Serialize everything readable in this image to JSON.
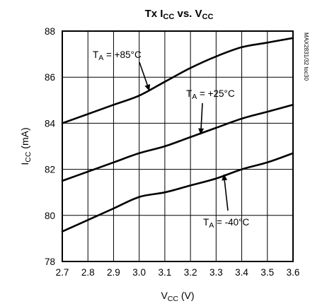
{
  "chart_data": {
    "type": "line",
    "title": {
      "base": "Tx I",
      "sub1": "CC",
      "mid": " vs. V",
      "sub2": "CC"
    },
    "xlabel": {
      "base": "V",
      "sub": "CC",
      "rest": " (V)"
    },
    "ylabel": {
      "base": "I",
      "sub": "CC",
      "rest": " (mA)"
    },
    "xlim": [
      2.7,
      3.6
    ],
    "ylim": [
      78,
      88
    ],
    "xticks": [
      "2.7",
      "2.8",
      "2.9",
      "3.0",
      "3.1",
      "3.2",
      "3.3",
      "3.4",
      "3.5",
      "3.6"
    ],
    "yticks": [
      "78",
      "80",
      "82",
      "84",
      "86",
      "88"
    ],
    "grid": true,
    "series": [
      {
        "name": {
          "base": "T",
          "sub": "A",
          "rest": " = +85°C"
        },
        "x": [
          2.7,
          2.8,
          2.9,
          3.0,
          3.1,
          3.2,
          3.3,
          3.4,
          3.5,
          3.6
        ],
        "y": [
          84.0,
          84.4,
          84.8,
          85.2,
          85.8,
          86.4,
          86.9,
          87.3,
          87.5,
          87.7
        ],
        "label_at": [
          2.92,
          3.04
        ]
      },
      {
        "name": {
          "base": "T",
          "sub": "A",
          "rest": " = +25°C"
        },
        "x": [
          2.7,
          2.8,
          2.9,
          3.0,
          3.1,
          3.2,
          3.3,
          3.4,
          3.5,
          3.6
        ],
        "y": [
          81.5,
          81.9,
          82.3,
          82.7,
          83.0,
          83.4,
          83.8,
          84.2,
          84.5,
          84.8
        ],
        "label_at": [
          3.29,
          3.27
        ]
      },
      {
        "name": {
          "base": "T",
          "sub": "A",
          "rest": " = -40°C"
        },
        "x": [
          2.7,
          2.8,
          2.9,
          3.0,
          3.1,
          3.2,
          3.3,
          3.4,
          3.5,
          3.6
        ],
        "y": [
          79.3,
          79.8,
          80.3,
          80.8,
          81.0,
          81.3,
          81.6,
          82.0,
          82.3,
          82.7
        ],
        "label_at": [
          3.35,
          3.42
        ]
      }
    ],
    "side_note": "MAX2831/32 toc30"
  }
}
